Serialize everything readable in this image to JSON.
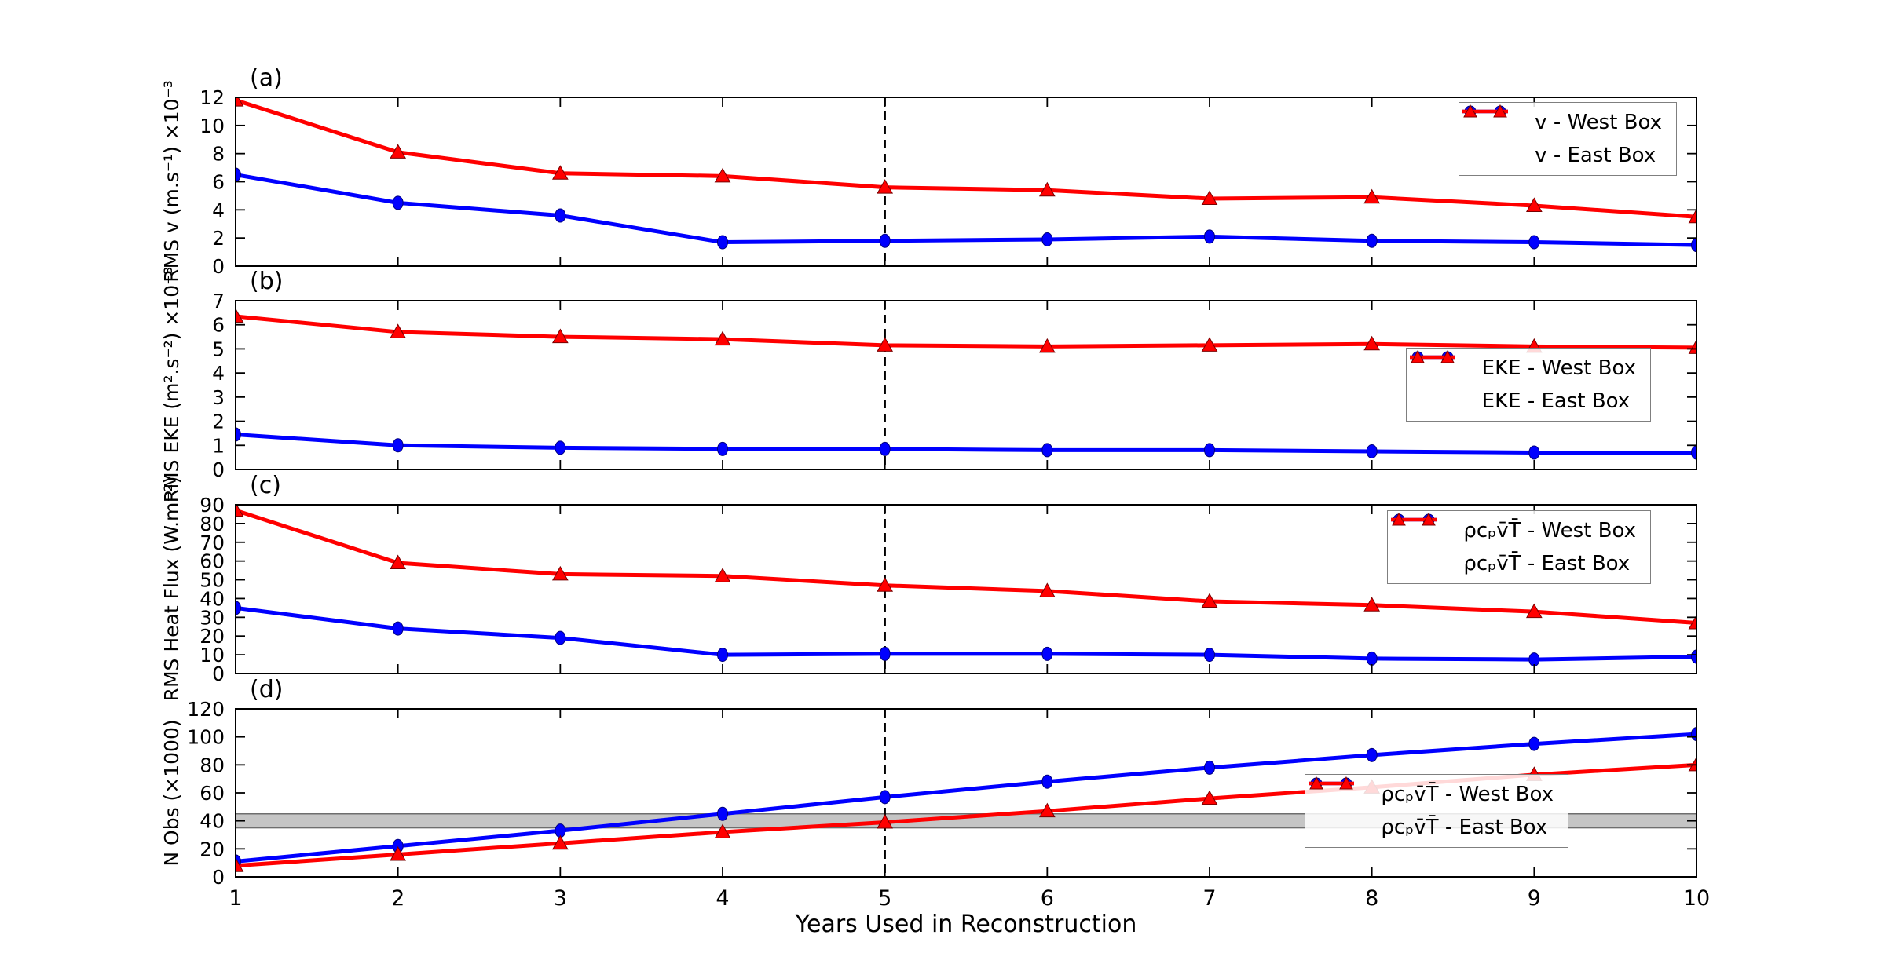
{
  "figure": {
    "xlabel": "Years Used in Reconstruction",
    "x_tick_labels": [
      "1",
      "2",
      "3",
      "4",
      "5",
      "6",
      "7",
      "8",
      "9",
      "10"
    ],
    "dashed_line_x": 5,
    "colors": {
      "west": "#0000ff",
      "east": "#ff0000",
      "west_edge": "#000080",
      "east_edge": "#7a0000",
      "band_fill": "#969696",
      "band_edge": "#6e6e6e",
      "dashed": "#000000",
      "frame": "#000000"
    }
  },
  "chart_data": [
    {
      "type": "line",
      "panel": "a",
      "title": "(a)",
      "ylabel": "RMS v (m.s⁻¹) ×10⁻³",
      "x": [
        1,
        2,
        3,
        4,
        5,
        6,
        7,
        8,
        9,
        10
      ],
      "xlim": [
        1,
        10
      ],
      "ylim": [
        0,
        12
      ],
      "yticks": [
        0,
        2,
        4,
        6,
        8,
        10,
        12
      ],
      "grid": false,
      "legend_position": "top-right",
      "series": [
        {
          "name": "west",
          "label": "v - West Box",
          "marker": "circle",
          "values": [
            6.5,
            4.5,
            3.6,
            1.7,
            1.8,
            1.9,
            2.1,
            1.8,
            1.7,
            1.5
          ]
        },
        {
          "name": "east",
          "label": "v - East Box",
          "marker": "triangle",
          "values": [
            11.8,
            8.1,
            6.6,
            6.4,
            5.6,
            5.4,
            4.8,
            4.9,
            4.3,
            3.5
          ]
        }
      ]
    },
    {
      "type": "line",
      "panel": "b",
      "title": "(b)",
      "ylabel": "RMS EKE (m².s⁻²) ×10⁻³",
      "x": [
        1,
        2,
        3,
        4,
        5,
        6,
        7,
        8,
        9,
        10
      ],
      "xlim": [
        1,
        10
      ],
      "ylim": [
        0,
        7
      ],
      "yticks": [
        0,
        1,
        2,
        3,
        4,
        5,
        6,
        7
      ],
      "grid": false,
      "legend_position": "middle-right",
      "series": [
        {
          "name": "west",
          "label": "EKE - West Box",
          "marker": "circle",
          "values": [
            1.45,
            1.0,
            0.9,
            0.85,
            0.85,
            0.8,
            0.8,
            0.75,
            0.7,
            0.7
          ]
        },
        {
          "name": "east",
          "label": "EKE - East Box",
          "marker": "triangle",
          "values": [
            6.35,
            5.7,
            5.5,
            5.4,
            5.15,
            5.1,
            5.15,
            5.2,
            5.1,
            5.05
          ]
        }
      ]
    },
    {
      "type": "line",
      "panel": "c",
      "title": "(c)",
      "ylabel": "RMS Heat Flux (W.m⁻²)",
      "x": [
        1,
        2,
        3,
        4,
        5,
        6,
        7,
        8,
        9,
        10
      ],
      "xlim": [
        1,
        10
      ],
      "ylim": [
        0,
        90
      ],
      "yticks": [
        0,
        10,
        20,
        30,
        40,
        50,
        60,
        70,
        80,
        90
      ],
      "grid": false,
      "legend_position": "top-right",
      "series": [
        {
          "name": "west",
          "label": "ρcₚv̄T̄ - West Box",
          "marker": "circle",
          "values": [
            35,
            24,
            19,
            10,
            10.5,
            10.5,
            10,
            8,
            7.5,
            9
          ]
        },
        {
          "name": "east",
          "label": "ρcₚv̄T̄ - East Box",
          "marker": "triangle",
          "values": [
            87,
            59,
            53,
            52,
            47,
            44,
            38.5,
            36.5,
            33,
            27
          ]
        }
      ]
    },
    {
      "type": "line",
      "panel": "d",
      "title": "(d)",
      "ylabel": "N Obs (×1000)",
      "x": [
        1,
        2,
        3,
        4,
        5,
        6,
        7,
        8,
        9,
        10
      ],
      "xlim": [
        1,
        10
      ],
      "ylim": [
        0,
        120
      ],
      "yticks": [
        0,
        20,
        40,
        60,
        80,
        100,
        120
      ],
      "grid": false,
      "legend_position": "bottom-right-inset",
      "band": {
        "from": 35,
        "to": 45
      },
      "series": [
        {
          "name": "west",
          "label": "ρcₚv̄T̄ - West Box",
          "marker": "circle",
          "values": [
            11,
            22,
            33,
            45,
            57,
            68,
            78,
            87,
            95,
            102
          ]
        },
        {
          "name": "east",
          "label": "ρcₚv̄T̄ - East Box",
          "marker": "triangle",
          "values": [
            8,
            16,
            24,
            32,
            39,
            47,
            56,
            64,
            73,
            80
          ]
        }
      ]
    }
  ]
}
